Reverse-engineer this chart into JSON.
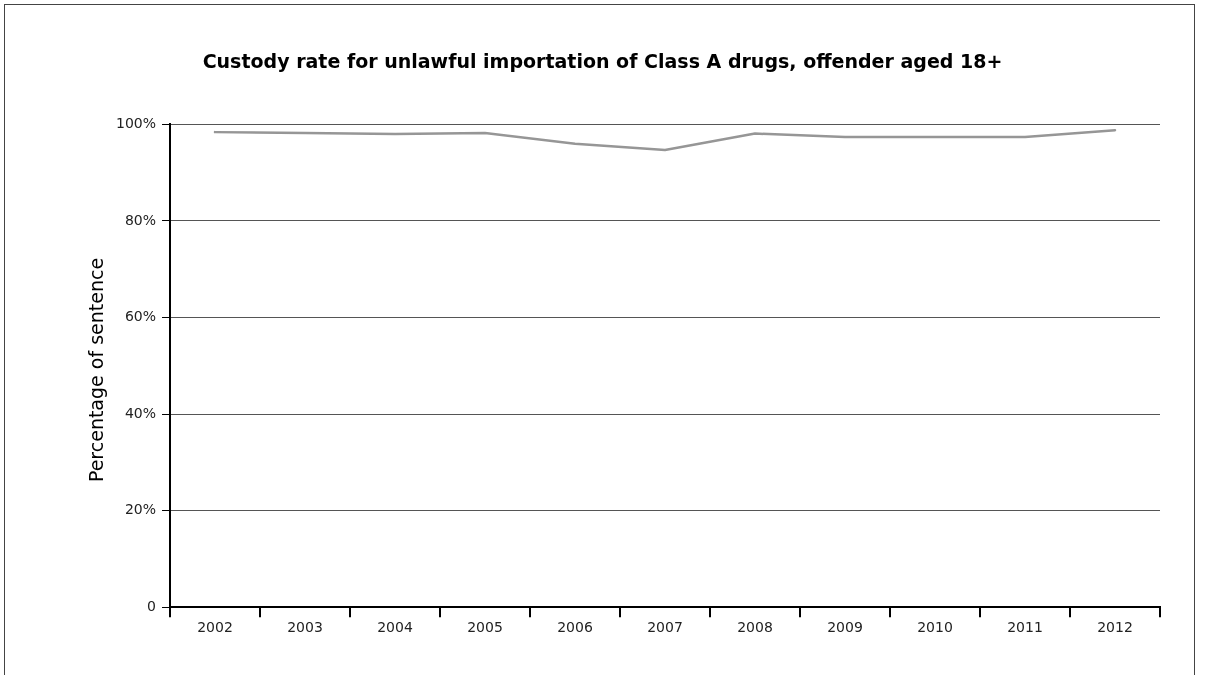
{
  "chart_data": {
    "type": "line",
    "title": "Custody rate for unlawful importation of Class A drugs, offender aged 18+",
    "ylabel": "Percentage of sentence",
    "categories": [
      "2002",
      "2003",
      "2004",
      "2005",
      "2006",
      "2007",
      "2008",
      "2009",
      "2010",
      "2011",
      "2012"
    ],
    "series": [
      {
        "color": "#969696",
        "values": [
          98.4,
          98.2,
          98.0,
          98.2,
          96.0,
          94.7,
          98.1,
          97.4,
          97.4,
          97.4,
          98.8
        ]
      }
    ],
    "ylim": [
      0,
      100
    ],
    "yticks": [
      {
        "value": 0,
        "label": "0"
      },
      {
        "value": 20,
        "label": "20%"
      },
      {
        "value": 40,
        "label": "40%"
      },
      {
        "value": 60,
        "label": "60%"
      },
      {
        "value": 80,
        "label": "80%"
      },
      {
        "value": 100,
        "label": "100%"
      }
    ],
    "grid": "y",
    "legend": false,
    "marker": "none",
    "line_style": "solid"
  }
}
